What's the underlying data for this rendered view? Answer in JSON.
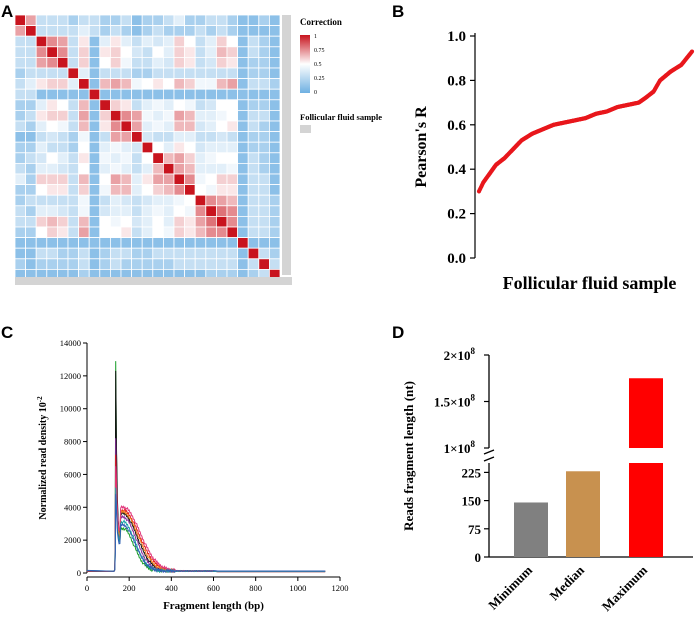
{
  "panels": {
    "a": "A",
    "b": "B",
    "c": "C",
    "d": "D"
  },
  "heatmap": {
    "legend_title": "Correction",
    "legend_ticks": [
      "1",
      "0.75",
      "0.5",
      "0.25",
      "0"
    ],
    "legend_tick_values": [
      1,
      0.75,
      0.5,
      0.25,
      0
    ],
    "sample_label": "Follicular fluid sample",
    "colors": {
      "high": "#c8141e",
      "mid": "#ffffff",
      "low": "#6fb0e2",
      "bar": "#d4d4d4"
    }
  },
  "chart_data": [
    {
      "type": "heatmap",
      "title": "Correction",
      "n": 25,
      "matrix": [
        [
          1,
          0.7,
          0.3,
          0.3,
          0.3,
          0.2,
          0.3,
          0.3,
          0.2,
          0.2,
          0.3,
          0.1,
          0.2,
          0.2,
          0.3,
          0.4,
          0.2,
          0.2,
          0.3,
          0.3,
          0.2,
          0.1,
          0.1,
          0.2,
          0.1
        ],
        [
          0.7,
          1,
          0.3,
          0.3,
          0.3,
          0.3,
          0.4,
          0.3,
          0.2,
          0.3,
          0.2,
          0.1,
          0.2,
          0.3,
          0.2,
          0.2,
          0.2,
          0.3,
          0.2,
          0.3,
          0.2,
          0.1,
          0.1,
          0.1,
          0.1
        ],
        [
          0.3,
          0.3,
          1,
          0.75,
          0.7,
          0.3,
          0.55,
          0.1,
          0.4,
          0.55,
          0.4,
          0.3,
          0.4,
          0.35,
          0.4,
          0.6,
          0.5,
          0.3,
          0.4,
          0.6,
          0.5,
          0.1,
          0.3,
          0.2,
          0.1
        ],
        [
          0.3,
          0.3,
          0.75,
          1,
          0.75,
          0.3,
          0.6,
          0.1,
          0.55,
          0.6,
          0.5,
          0.35,
          0.3,
          0.5,
          0.4,
          0.6,
          0.55,
          0.3,
          0.4,
          0.65,
          0.6,
          0.1,
          0.3,
          0.2,
          0.1
        ],
        [
          0.3,
          0.3,
          0.7,
          0.75,
          1,
          0.3,
          0.6,
          0.1,
          0.5,
          0.6,
          0.45,
          0.3,
          0.3,
          0.4,
          0.35,
          0.6,
          0.55,
          0.3,
          0.35,
          0.6,
          0.55,
          0.1,
          0.2,
          0.2,
          0.1
        ],
        [
          0.2,
          0.3,
          0.3,
          0.3,
          0.3,
          1,
          0.4,
          0.1,
          0.3,
          0.3,
          0.3,
          0.2,
          0.2,
          0.3,
          0.3,
          0.3,
          0.3,
          0.3,
          0.3,
          0.3,
          0.3,
          0.1,
          0.2,
          0.2,
          0.1
        ],
        [
          0.3,
          0.4,
          0.55,
          0.6,
          0.6,
          0.4,
          1,
          0.1,
          0.65,
          0.7,
          0.65,
          0.45,
          0.5,
          0.55,
          0.5,
          0.65,
          0.6,
          0.45,
          0.45,
          0.65,
          0.7,
          0.1,
          0.3,
          0.3,
          0.2
        ],
        [
          0.3,
          0.3,
          0.1,
          0.1,
          0.1,
          0.1,
          0.1,
          1,
          0.1,
          0.1,
          0.1,
          0.1,
          0.1,
          0.1,
          0.1,
          0.1,
          0.1,
          0.1,
          0.1,
          0.1,
          0.1,
          0.1,
          0.1,
          0.1,
          0.1
        ],
        [
          0.2,
          0.2,
          0.4,
          0.55,
          0.5,
          0.3,
          0.65,
          0.1,
          1,
          0.6,
          0.55,
          0.3,
          0.4,
          0.45,
          0.4,
          0.5,
          0.45,
          0.3,
          0.35,
          0.5,
          0.5,
          0.1,
          0.2,
          0.2,
          0.1
        ],
        [
          0.2,
          0.3,
          0.55,
          0.6,
          0.6,
          0.3,
          0.7,
          0.1,
          0.6,
          1,
          0.75,
          0.7,
          0.45,
          0.4,
          0.45,
          0.7,
          0.65,
          0.4,
          0.4,
          0.45,
          0.5,
          0.1,
          0.3,
          0.3,
          0.1
        ],
        [
          0.3,
          0.2,
          0.4,
          0.5,
          0.45,
          0.3,
          0.65,
          0.1,
          0.55,
          0.75,
          1,
          0.7,
          0.4,
          0.45,
          0.4,
          0.65,
          0.65,
          0.35,
          0.4,
          0.5,
          0.55,
          0.1,
          0.3,
          0.2,
          0.1
        ],
        [
          0.1,
          0.1,
          0.3,
          0.35,
          0.3,
          0.2,
          0.45,
          0.1,
          0.3,
          0.7,
          0.7,
          1,
          0.35,
          0.3,
          0.3,
          0.4,
          0.4,
          0.3,
          0.3,
          0.35,
          0.3,
          0.1,
          0.2,
          0.2,
          0.1
        ],
        [
          0.2,
          0.2,
          0.4,
          0.3,
          0.3,
          0.2,
          0.5,
          0.1,
          0.4,
          0.45,
          0.4,
          0.35,
          1,
          0.5,
          0.4,
          0.55,
          0.5,
          0.35,
          0.4,
          0.4,
          0.4,
          0.1,
          0.2,
          0.2,
          0.1
        ],
        [
          0.2,
          0.3,
          0.35,
          0.5,
          0.4,
          0.3,
          0.55,
          0.1,
          0.45,
          0.4,
          0.45,
          0.3,
          0.5,
          1,
          0.65,
          0.7,
          0.6,
          0.4,
          0.45,
          0.5,
          0.5,
          0.1,
          0.3,
          0.2,
          0.1
        ],
        [
          0.3,
          0.2,
          0.4,
          0.4,
          0.35,
          0.3,
          0.5,
          0.1,
          0.4,
          0.45,
          0.4,
          0.3,
          0.4,
          0.65,
          1,
          0.7,
          0.65,
          0.4,
          0.4,
          0.4,
          0.45,
          0.1,
          0.3,
          0.2,
          0.1
        ],
        [
          0.4,
          0.2,
          0.6,
          0.6,
          0.6,
          0.3,
          0.65,
          0.1,
          0.5,
          0.7,
          0.65,
          0.4,
          0.55,
          0.7,
          0.7,
          1,
          0.75,
          0.45,
          0.5,
          0.6,
          0.6,
          0.1,
          0.3,
          0.3,
          0.1
        ],
        [
          0.2,
          0.2,
          0.5,
          0.55,
          0.55,
          0.3,
          0.6,
          0.1,
          0.45,
          0.65,
          0.65,
          0.4,
          0.5,
          0.6,
          0.65,
          0.75,
          1,
          0.5,
          0.45,
          0.55,
          0.55,
          0.1,
          0.3,
          0.3,
          0.1
        ],
        [
          0.2,
          0.3,
          0.3,
          0.3,
          0.3,
          0.3,
          0.45,
          0.1,
          0.3,
          0.4,
          0.35,
          0.3,
          0.35,
          0.4,
          0.4,
          0.45,
          0.5,
          1,
          0.75,
          0.7,
          0.65,
          0.1,
          0.3,
          0.3,
          0.2
        ],
        [
          0.3,
          0.2,
          0.4,
          0.4,
          0.35,
          0.3,
          0.45,
          0.1,
          0.35,
          0.4,
          0.4,
          0.3,
          0.4,
          0.45,
          0.4,
          0.5,
          0.45,
          0.75,
          1,
          0.8,
          0.75,
          0.1,
          0.3,
          0.3,
          0.2
        ],
        [
          0.3,
          0.3,
          0.6,
          0.65,
          0.6,
          0.3,
          0.65,
          0.1,
          0.5,
          0.45,
          0.5,
          0.35,
          0.4,
          0.5,
          0.4,
          0.6,
          0.55,
          0.7,
          0.8,
          1,
          0.75,
          0.1,
          0.3,
          0.3,
          0.2
        ],
        [
          0.2,
          0.2,
          0.5,
          0.6,
          0.55,
          0.3,
          0.7,
          0.1,
          0.5,
          0.5,
          0.55,
          0.3,
          0.4,
          0.5,
          0.45,
          0.6,
          0.55,
          0.65,
          0.75,
          0.75,
          1,
          0.1,
          0.3,
          0.3,
          0.2
        ],
        [
          0.1,
          0.1,
          0.1,
          0.1,
          0.1,
          0.1,
          0.1,
          0.1,
          0.1,
          0.1,
          0.1,
          0.1,
          0.1,
          0.1,
          0.1,
          0.1,
          0.1,
          0.1,
          0.1,
          0.1,
          0.1,
          1,
          0.1,
          0.1,
          0.1
        ],
        [
          0.1,
          0.1,
          0.3,
          0.3,
          0.2,
          0.2,
          0.3,
          0.1,
          0.2,
          0.3,
          0.3,
          0.2,
          0.2,
          0.3,
          0.3,
          0.3,
          0.3,
          0.3,
          0.3,
          0.3,
          0.3,
          0.1,
          1,
          0.3,
          0.2
        ],
        [
          0.2,
          0.1,
          0.2,
          0.2,
          0.2,
          0.2,
          0.3,
          0.1,
          0.2,
          0.3,
          0.2,
          0.2,
          0.2,
          0.2,
          0.2,
          0.3,
          0.3,
          0.3,
          0.3,
          0.3,
          0.3,
          0.1,
          0.3,
          1,
          0.3
        ],
        [
          0.1,
          0.1,
          0.1,
          0.1,
          0.1,
          0.1,
          0.2,
          0.1,
          0.1,
          0.1,
          0.1,
          0.1,
          0.1,
          0.1,
          0.1,
          0.1,
          0.1,
          0.1,
          0.2,
          0.2,
          0.2,
          0.1,
          0.2,
          0.3,
          1
        ]
      ]
    },
    {
      "type": "scatter",
      "xlabel": "Follicular fluid sample",
      "ylabel": "Pearson's R",
      "ylim": [
        0.0,
        1.0
      ],
      "yticks": [
        "0.0",
        "0.2",
        "0.4",
        "0.6",
        "0.8",
        "1.0"
      ],
      "ytick_values": [
        0,
        0.2,
        0.4,
        0.6,
        0.8,
        1.0
      ],
      "color": "#e8171c",
      "n_points": 300,
      "curve": [
        [
          0,
          0.3
        ],
        [
          0.02,
          0.34
        ],
        [
          0.05,
          0.38
        ],
        [
          0.08,
          0.42
        ],
        [
          0.12,
          0.45
        ],
        [
          0.16,
          0.49
        ],
        [
          0.2,
          0.53
        ],
        [
          0.25,
          0.56
        ],
        [
          0.3,
          0.58
        ],
        [
          0.35,
          0.6
        ],
        [
          0.4,
          0.61
        ],
        [
          0.45,
          0.62
        ],
        [
          0.5,
          0.63
        ],
        [
          0.55,
          0.65
        ],
        [
          0.6,
          0.66
        ],
        [
          0.65,
          0.68
        ],
        [
          0.7,
          0.69
        ],
        [
          0.75,
          0.7
        ],
        [
          0.78,
          0.72
        ],
        [
          0.82,
          0.75
        ],
        [
          0.85,
          0.8
        ],
        [
          0.9,
          0.84
        ],
        [
          0.95,
          0.87
        ],
        [
          1.0,
          0.93
        ]
      ]
    },
    {
      "type": "line",
      "xlabel": "Fragment length (bp)",
      "ylabel": "Normalized read density 10",
      "ylabel_sup": "-2",
      "xlim": [
        0,
        1200
      ],
      "ylim": [
        0,
        14000
      ],
      "xticks": [
        "0",
        "200",
        "400",
        "600",
        "800",
        "1000",
        "1200"
      ],
      "xtick_values": [
        0,
        200,
        400,
        600,
        800,
        1000,
        1200
      ],
      "yticks": [
        "0",
        "2000",
        "4000",
        "6000",
        "8000",
        "10000",
        "12000",
        "14000"
      ],
      "ytick_values": [
        0,
        2000,
        4000,
        6000,
        8000,
        10000,
        12000,
        14000
      ],
      "series": [
        {
          "name": "green",
          "color": "#1a9e2a",
          "peak": 12900,
          "tail": 2600,
          "decay": 55
        },
        {
          "name": "black",
          "color": "#111111",
          "peak": 12300,
          "tail": 3500,
          "decay": 70
        },
        {
          "name": "purple",
          "color": "#8a2f9e",
          "peak": 8200,
          "tail": 3300,
          "decay": 65
        },
        {
          "name": "red",
          "color": "#e41a1c",
          "peak": 7200,
          "tail": 3700,
          "decay": 80
        },
        {
          "name": "orange",
          "color": "#f07f1e",
          "peak": 5800,
          "tail": 3600,
          "decay": 75
        },
        {
          "name": "pink",
          "color": "#e0357b",
          "peak": 6500,
          "tail": 3900,
          "decay": 85
        },
        {
          "name": "teal",
          "color": "#1aa6a6",
          "peak": 5200,
          "tail": 3000,
          "decay": 60
        },
        {
          "name": "blue",
          "color": "#2f5fb5",
          "peak": 4800,
          "tail": 2800,
          "decay": 60
        }
      ]
    },
    {
      "type": "bar",
      "ylabel": "Reads fragment length (nt)",
      "categories": [
        "Minimum",
        "Median",
        "Maximum"
      ],
      "values": [
        145,
        228,
        175000000
      ],
      "colors": [
        "#808080",
        "#c8914f",
        "#ff0000"
      ],
      "axis_break": true,
      "lower_yticks": [
        "0",
        "75",
        "150",
        "225"
      ],
      "lower_ytick_values": [
        0,
        75,
        150,
        225
      ],
      "lower_ylim": [
        0,
        250
      ],
      "upper_yticks": [
        "1×10",
        "1.5×10",
        "2×10"
      ],
      "upper_ytick_values": [
        100000000,
        150000000,
        200000000
      ],
      "upper_ytick_exp": "8",
      "upper_ylim": [
        100000000,
        200000000
      ]
    }
  ]
}
